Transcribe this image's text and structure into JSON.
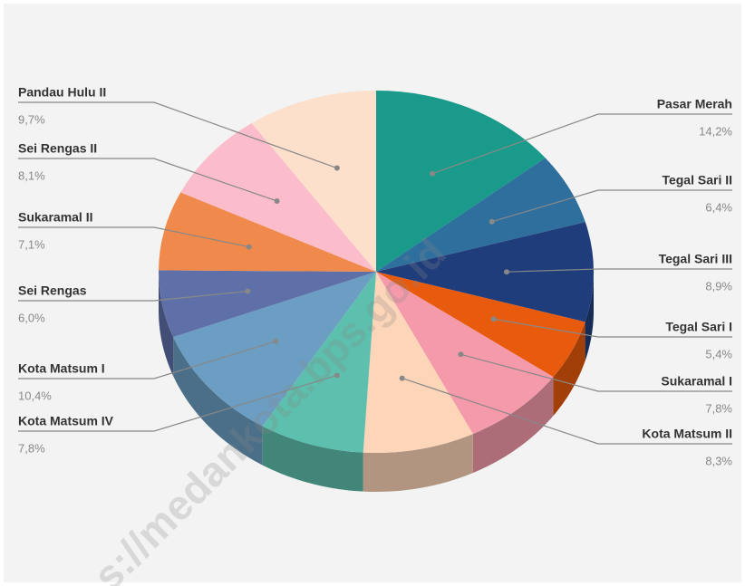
{
  "chart_data": {
    "type": "pie",
    "categories": [
      "Pasar Merah",
      "Tegal Sari II",
      "Tegal Sari III",
      "Tegal Sari I",
      "Sukaramal I",
      "Kota Matsum II",
      "Kota Matsum IV",
      "Kota Matsum I",
      "Sei Rengas",
      "Sukaramal II",
      "Sei Rengas II",
      "Pandau Hulu II"
    ],
    "values": [
      14.2,
      6.4,
      8.9,
      5.4,
      7.8,
      8.3,
      7.8,
      10.4,
      6.0,
      7.1,
      8.1,
      9.7
    ],
    "value_labels": [
      "14,2%",
      "6,4%",
      "8,9%",
      "5,4%",
      "7,8%",
      "8,3%",
      "7,8%",
      "10,4%",
      "6,0%",
      "7,1%",
      "8,1%",
      "9,7%"
    ],
    "colors": [
      "#1a9a8a",
      "#2e6f9e",
      "#1f3d7a",
      "#e85a0c",
      "#f59aab",
      "#fdd5b8",
      "#5dbfad",
      "#6b9ec2",
      "#5f70a8",
      "#ef8a4c",
      "#fbbccb",
      "#fde0cc"
    ],
    "watermark": "s://medankota.bps.go.id"
  }
}
